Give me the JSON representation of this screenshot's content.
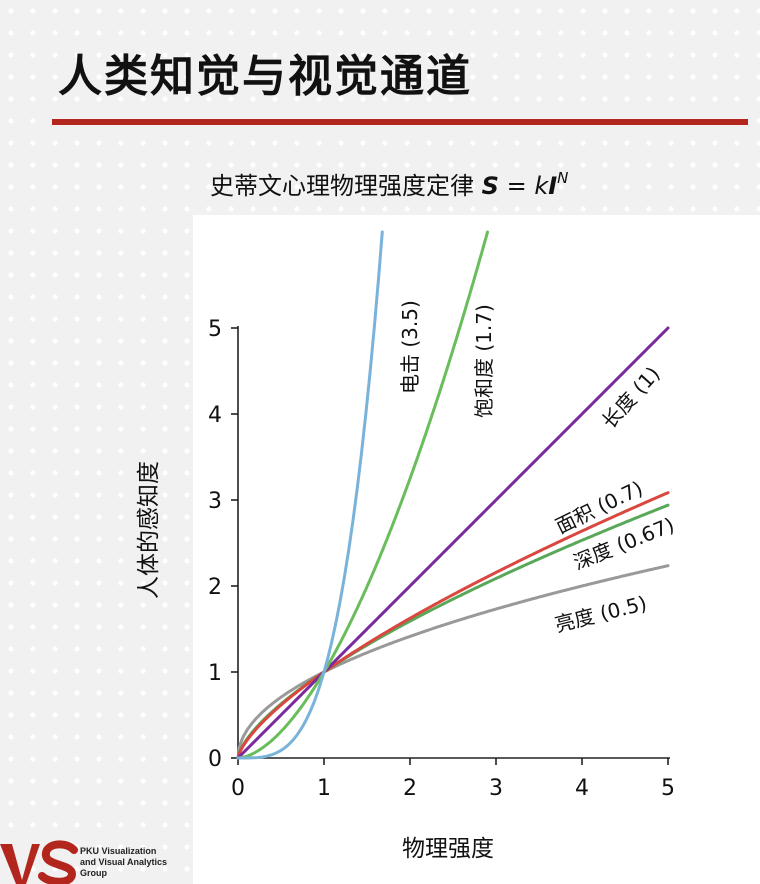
{
  "slide": {
    "title": "人类知觉与视觉通道"
  },
  "logo": {
    "lines": [
      "PKU Visualization",
      "and Visual Analytics",
      "Group"
    ]
  },
  "colors": {
    "accent_rule": "#b3261e",
    "shock": "#7ab3da",
    "saturation": "#69bd5b",
    "length": "#7b2a9e",
    "area": "#d9473f",
    "depth": "#59a85a",
    "brightness": "#999999"
  },
  "chart_data": {
    "type": "line",
    "title": {
      "text": "史蒂文心理物理强度定律 ",
      "formula_S": "S",
      "formula_eq": " = ",
      "formula_k": "k",
      "formula_I": "I",
      "formula_N": "N"
    },
    "xlabel": "物理强度",
    "ylabel": "人体的感知度",
    "xlim": [
      0,
      5
    ],
    "ylim": [
      0,
      5
    ],
    "xticks": [
      "0",
      "1",
      "2",
      "3",
      "4",
      "5"
    ],
    "yticks": [
      "0",
      "1",
      "2",
      "3",
      "4",
      "5"
    ],
    "grid": false,
    "function": "y = x^N",
    "series": [
      {
        "name": "电击 (3.5)",
        "exponent": 3.5,
        "color": "#7ab3da"
      },
      {
        "name": "饱和度 (1.7)",
        "exponent": 1.7,
        "color": "#69bd5b"
      },
      {
        "name": "长度 (1)",
        "exponent": 1.0,
        "color": "#7b2a9e"
      },
      {
        "name": "面积 (0.7)",
        "exponent": 0.7,
        "color": "#d9473f"
      },
      {
        "name": "深度 (0.67)",
        "exponent": 0.67,
        "color": "#59a85a"
      },
      {
        "name": "亮度 (0.5)",
        "exponent": 0.5,
        "color": "#999999"
      }
    ]
  }
}
